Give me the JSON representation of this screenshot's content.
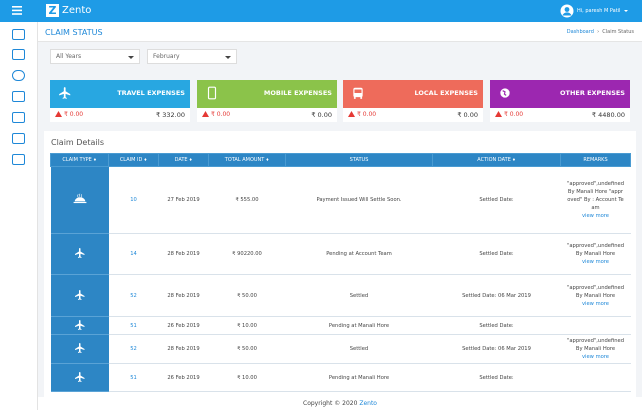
{
  "topbar": {
    "brand": "Zento",
    "user": "Hi, paresh M Patil"
  },
  "page": {
    "title": "CLAIM STATUS",
    "breadcrumb": [
      "Dashboard",
      "Claim Status"
    ]
  },
  "filters": [
    "All Years",
    "February"
  ],
  "cards": [
    {
      "title": "TRAVEL EXPENSES",
      "change": "₹ 0.00",
      "amount": "₹ 332.00"
    },
    {
      "title": "MOBILE EXPENSES",
      "change": "₹ 0.00",
      "amount": "₹ 0.00"
    },
    {
      "title": "LOCAL EXPENSES",
      "change": "₹ 0.00",
      "amount": "₹ 0.00"
    },
    {
      "title": "OTHER EXPENSES",
      "change": "₹ 0.00",
      "amount": "₹ 4480.00"
    }
  ],
  "table": {
    "title": "Claim Details",
    "columns": [
      "CLAIM TYPE",
      "CLAIM ID",
      "DATE",
      "TOTAL AMOUNT",
      "STATUS",
      "ACTION DATE",
      "REMARKS"
    ],
    "rows": [
      [
        "10",
        "27 Feb 2019",
        "₹ 555.00",
        "Payment Issued Will Settle Soon.",
        "Settled Date:",
        "\"approved\",undefined By Manali Hore \"approved\" By : Account Team",
        "view more"
      ],
      [
        "14",
        "28 Feb 2019",
        "₹ 90220.00",
        "Pending at Account Team",
        "Settled Date:",
        "\"approved\",undefined By Manali Hore",
        "view more"
      ],
      [
        "52",
        "28 Feb 2019",
        "₹ 50.00",
        "Settled",
        "Settled Date: 06 Mar 2019",
        "\"approved\",undefined By Manali Hore",
        "view more"
      ],
      [
        "51",
        "26 Feb 2019",
        "₹ 10.00",
        "Pending at Manali Hore",
        "Settled Date:"
      ],
      [
        "52",
        "28 Feb 2019",
        "₹ 50.00",
        "Settled",
        "Settled Date: 06 Mar 2019",
        "\"approved\",undefined By Manali Hore",
        "view more"
      ],
      [
        "51",
        "26 Feb 2019",
        "₹ 10.00",
        "Pending at Manali Hore",
        "Settled Date:"
      ]
    ]
  },
  "footer": {
    "text": "Copyright © 2020",
    "brand": "Zento"
  }
}
